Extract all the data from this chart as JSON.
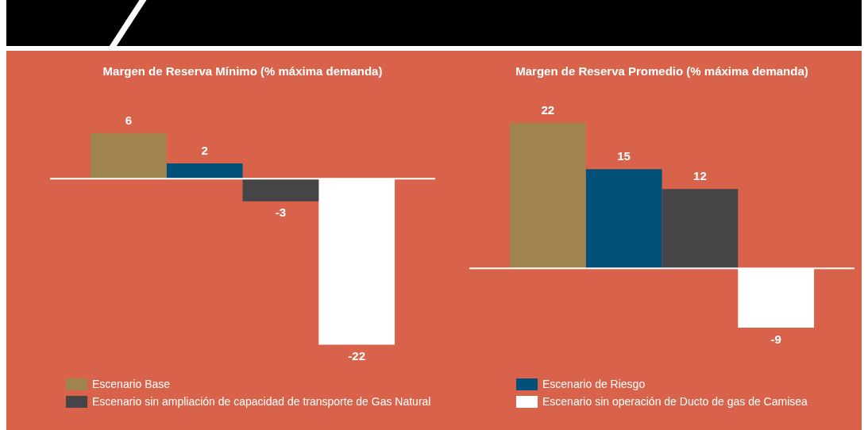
{
  "chart_data": [
    {
      "type": "bar",
      "title": "Margen de Reserva Mínimo (% máxima demanda)",
      "categories": [
        null
      ],
      "data_labels": true,
      "legend": "bottom",
      "series": [
        {
          "name": "Escenario Base",
          "color": "#a08450",
          "values": [
            6
          ]
        },
        {
          "name": "Escenario de Riesgo",
          "color": "#00507a",
          "values": [
            2
          ]
        },
        {
          "name": "Escenario sin ampliación de capacidad de transporte de Gas Natural",
          "color": "#454547",
          "values": [
            -3
          ]
        },
        {
          "name": "Escenario sin operación de Ducto de gas de Camisea",
          "color": "#ffffff",
          "values": [
            -22
          ]
        }
      ]
    },
    {
      "type": "bar",
      "title": "Margen de Reserva Promedio (% máxima demanda)",
      "categories": [
        null
      ],
      "data_labels": true,
      "series": [
        {
          "color": "#a08450",
          "values": [
            22
          ]
        },
        {
          "color": "#00507a",
          "values": [
            15
          ]
        },
        {
          "color": "#454547",
          "values": [
            12
          ]
        },
        {
          "color": "#ffffff",
          "values": [
            -9
          ]
        }
      ]
    }
  ]
}
